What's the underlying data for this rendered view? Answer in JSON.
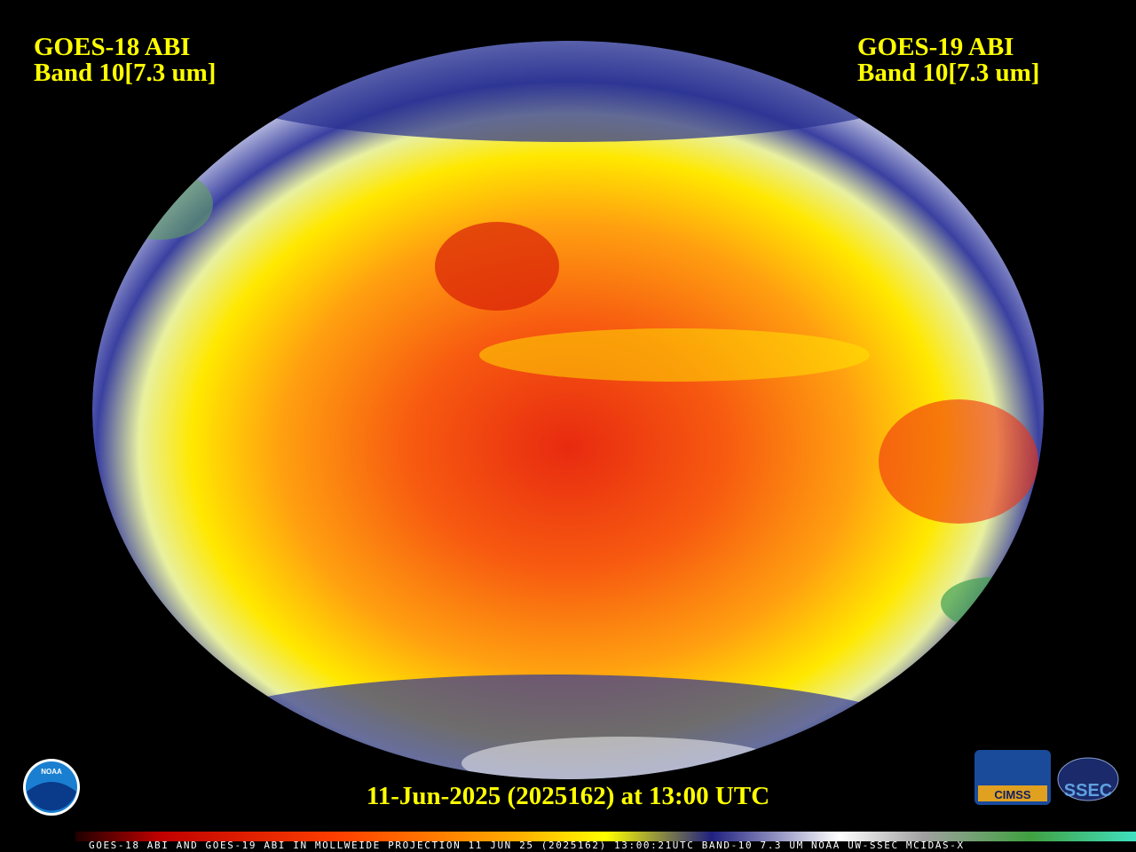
{
  "header": {
    "left": {
      "satellite": "GOES-18 ABI",
      "band": "Band 10[7.3 um]"
    },
    "right": {
      "satellite": "GOES-19 ABI",
      "band": "Band 10[7.3 um]"
    }
  },
  "timestamp": "11-Jun-2025 (2025162) at 13:00 UTC",
  "colorbar_caption": "GOES-18 ABI AND GOES-19 ABI IN MOLLWEIDE PROJECTION 11 JUN 25 (2025162) 13:00:21UTC BAND-10 7.3 UM NOAA UW-SSEC MCIDAS-X",
  "logos": {
    "noaa": "NOAA",
    "cimss": "CIMSS",
    "ssec": "SSEC"
  }
}
